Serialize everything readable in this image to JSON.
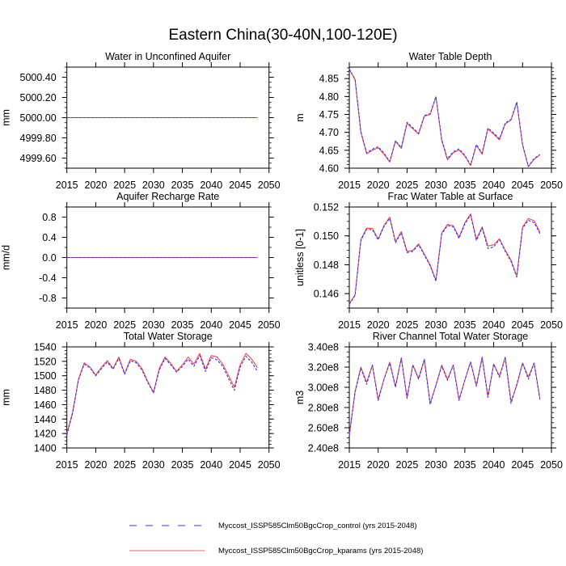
{
  "figure": {
    "title": "Eastern China(30-40N,100-120E)"
  },
  "legend": {
    "placement": "bottom-center",
    "entries": [
      {
        "label": "Myccost_ISSP585Clm50BgcCrop_control (yrs 2015-2048)",
        "color": "#3333ff",
        "style": "dashed"
      },
      {
        "label": "Myccost_ISSP585Clm50BgcCrop_kparams (yrs 2015-2048)",
        "color": "#ff3333",
        "style": "solid"
      }
    ]
  },
  "chart_data": [
    {
      "type": "line",
      "title": "Water in Unconfined Aquifer",
      "xlabel": "",
      "ylabel": "mm",
      "xlim": [
        2015,
        2050
      ],
      "ylim": [
        4999.5,
        5000.5
      ],
      "x_ticks": [
        2015,
        2020,
        2025,
        2030,
        2035,
        2040,
        2045,
        2050
      ],
      "x_minor": 5,
      "y_ticks": [
        4999.6,
        4999.8,
        5000.0,
        5000.2,
        5000.4
      ],
      "y_tick_labels": [
        "4999.60",
        "4999.80",
        "5000.00",
        "5000.20",
        "5000.40"
      ],
      "y_minor": 0.05,
      "grid": false,
      "x": [
        2015,
        2016,
        2017,
        2018,
        2019,
        2020,
        2021,
        2022,
        2023,
        2024,
        2025,
        2026,
        2027,
        2028,
        2029,
        2030,
        2031,
        2032,
        2033,
        2034,
        2035,
        2036,
        2037,
        2038,
        2039,
        2040,
        2041,
        2042,
        2043,
        2044,
        2045,
        2046,
        2047,
        2048
      ],
      "series": [
        {
          "name": "control",
          "values": [
            5000,
            5000,
            5000,
            5000,
            5000,
            5000,
            5000,
            5000,
            5000,
            5000,
            5000,
            5000,
            5000,
            5000,
            5000,
            5000,
            5000,
            5000,
            5000,
            5000,
            5000,
            5000,
            5000,
            5000,
            5000,
            5000,
            5000,
            5000,
            5000,
            5000,
            5000,
            5000,
            5000,
            5000
          ]
        },
        {
          "name": "kparams",
          "values": [
            5000,
            5000,
            5000,
            5000,
            5000,
            5000,
            5000,
            5000,
            5000,
            5000,
            5000,
            5000,
            5000,
            5000,
            5000,
            5000,
            5000,
            5000,
            5000,
            5000,
            5000,
            5000,
            5000,
            5000,
            5000,
            5000,
            5000,
            5000,
            5000,
            5000,
            5000,
            5000,
            5000,
            5000
          ]
        }
      ]
    },
    {
      "type": "line",
      "title": "Water Table Depth",
      "xlabel": "",
      "ylabel": "m",
      "xlim": [
        2015,
        2050
      ],
      "ylim": [
        4.6,
        4.882
      ],
      "x_ticks": [
        2015,
        2020,
        2025,
        2030,
        2035,
        2040,
        2045,
        2050
      ],
      "x_minor": 5,
      "y_ticks": [
        4.6,
        4.65,
        4.7,
        4.75,
        4.8,
        4.85
      ],
      "y_tick_labels": [
        "4.60",
        "4.65",
        "4.70",
        "4.75",
        "4.80",
        "4.85"
      ],
      "y_minor": 0.01,
      "grid": false,
      "x": [
        2015,
        2016,
        2017,
        2018,
        2019,
        2020,
        2021,
        2022,
        2023,
        2024,
        2025,
        2026,
        2027,
        2028,
        2029,
        2030,
        2031,
        2032,
        2033,
        2034,
        2035,
        2036,
        2037,
        2038,
        2039,
        2040,
        2041,
        2042,
        2043,
        2044,
        2045,
        2046,
        2047,
        2048
      ],
      "series": [
        {
          "name": "control",
          "values": [
            4.877,
            4.848,
            4.702,
            4.643,
            4.653,
            4.66,
            4.642,
            4.619,
            4.677,
            4.657,
            4.728,
            4.713,
            4.697,
            4.747,
            4.752,
            4.8,
            4.68,
            4.626,
            4.646,
            4.654,
            4.636,
            4.609,
            4.666,
            4.642,
            4.712,
            4.698,
            4.682,
            4.726,
            4.736,
            4.785,
            4.666,
            4.605,
            4.627,
            4.638
          ]
        },
        {
          "name": "kparams",
          "values": [
            4.876,
            4.847,
            4.7,
            4.64,
            4.65,
            4.657,
            4.639,
            4.617,
            4.675,
            4.655,
            4.725,
            4.71,
            4.695,
            4.745,
            4.75,
            4.799,
            4.678,
            4.623,
            4.643,
            4.651,
            4.634,
            4.607,
            4.664,
            4.639,
            4.709,
            4.695,
            4.679,
            4.724,
            4.734,
            4.783,
            4.664,
            4.604,
            4.625,
            4.637
          ]
        }
      ]
    },
    {
      "type": "line",
      "title": "Aquifer Recharge Rate",
      "xlabel": "",
      "ylabel": "mm/d",
      "xlim": [
        2015,
        2050
      ],
      "ylim": [
        -1.0,
        1.0
      ],
      "x_ticks": [
        2015,
        2020,
        2025,
        2030,
        2035,
        2040,
        2045,
        2050
      ],
      "x_minor": 5,
      "y_ticks": [
        -0.8,
        -0.4,
        0.0,
        0.4,
        0.8
      ],
      "y_tick_labels": [
        "-0.8",
        "-0.4",
        "0.0",
        "0.4",
        "0.8"
      ],
      "y_minor": 0.2,
      "grid": false,
      "x": [
        2015,
        2016,
        2017,
        2018,
        2019,
        2020,
        2021,
        2022,
        2023,
        2024,
        2025,
        2026,
        2027,
        2028,
        2029,
        2030,
        2031,
        2032,
        2033,
        2034,
        2035,
        2036,
        2037,
        2038,
        2039,
        2040,
        2041,
        2042,
        2043,
        2044,
        2045,
        2046,
        2047,
        2048
      ],
      "series": [
        {
          "name": "control",
          "values": [
            0,
            0,
            0,
            0,
            0,
            0,
            0,
            0,
            0,
            0,
            0,
            0,
            0,
            0,
            0,
            0,
            0,
            0,
            0,
            0,
            0,
            0,
            0,
            0,
            0,
            0,
            0,
            0,
            0,
            0,
            0,
            0,
            0,
            0
          ]
        },
        {
          "name": "kparams",
          "values": [
            0,
            0,
            0,
            0,
            0,
            0,
            0,
            0,
            0,
            0,
            0,
            0,
            0,
            0,
            0,
            0,
            0,
            0,
            0,
            0,
            0,
            0,
            0,
            0,
            0,
            0,
            0,
            0,
            0,
            0,
            0,
            0,
            0,
            0
          ]
        }
      ]
    },
    {
      "type": "line",
      "title": "Frac Water Table at Surface",
      "xlabel": "",
      "ylabel": "unitless [0-1]",
      "xlim": [
        2015,
        2050
      ],
      "ylim": [
        0.145,
        0.152
      ],
      "x_ticks": [
        2015,
        2020,
        2025,
        2030,
        2035,
        2040,
        2045,
        2050
      ],
      "x_minor": 5,
      "y_ticks": [
        0.146,
        0.148,
        0.15,
        0.152
      ],
      "y_tick_labels": [
        "0.146",
        "0.148",
        "0.150",
        "0.152"
      ],
      "y_minor": 0.0005,
      "grid": false,
      "x": [
        2015,
        2016,
        2017,
        2018,
        2019,
        2020,
        2021,
        2022,
        2023,
        2024,
        2025,
        2026,
        2027,
        2028,
        2029,
        2030,
        2031,
        2032,
        2033,
        2034,
        2035,
        2036,
        2037,
        2038,
        2039,
        2040,
        2041,
        2042,
        2043,
        2044,
        2045,
        2046,
        2047,
        2048
      ],
      "series": [
        {
          "name": "control",
          "values": [
            0.14525,
            0.14588,
            0.14968,
            0.15045,
            0.15043,
            0.14972,
            0.15065,
            0.15122,
            0.14953,
            0.15022,
            0.14884,
            0.14893,
            0.14938,
            0.14866,
            0.14793,
            0.14686,
            0.15012,
            0.15072,
            0.15063,
            0.14982,
            0.15082,
            0.15145,
            0.14968,
            0.15055,
            0.14913,
            0.14923,
            0.14974,
            0.14893,
            0.14823,
            0.14714,
            0.15053,
            0.15108,
            0.15092,
            0.15016
          ]
        },
        {
          "name": "kparams",
          "values": [
            0.1453,
            0.14592,
            0.14975,
            0.15053,
            0.15052,
            0.14978,
            0.15072,
            0.1513,
            0.1496,
            0.1503,
            0.14892,
            0.149,
            0.14945,
            0.14873,
            0.148,
            0.14692,
            0.1502,
            0.1508,
            0.1507,
            0.1499,
            0.1509,
            0.15152,
            0.14976,
            0.15062,
            0.1493,
            0.14938,
            0.1498,
            0.149,
            0.14832,
            0.14722,
            0.15062,
            0.1512,
            0.15105,
            0.15025
          ]
        }
      ]
    },
    {
      "type": "line",
      "title": "Total Water Storage",
      "xlabel": "",
      "ylabel": "mm",
      "xlim": [
        2015,
        2050
      ],
      "ylim": [
        1400,
        1540
      ],
      "x_ticks": [
        2015,
        2020,
        2025,
        2030,
        2035,
        2040,
        2045,
        2050
      ],
      "x_minor": 5,
      "y_ticks": [
        1400,
        1420,
        1440,
        1460,
        1480,
        1500,
        1520,
        1540
      ],
      "y_tick_labels": [
        "1400",
        "1420",
        "1440",
        "1460",
        "1480",
        "1500",
        "1520",
        "1540"
      ],
      "y_minor": 5,
      "grid": false,
      "x": [
        2015,
        2016,
        2017,
        2018,
        2019,
        2020,
        2021,
        2022,
        2023,
        2024,
        2025,
        2026,
        2027,
        2028,
        2029,
        2030,
        2031,
        2032,
        2033,
        2034,
        2035,
        2036,
        2037,
        2038,
        2039,
        2040,
        2041,
        2042,
        2043,
        2044,
        2045,
        2046,
        2047,
        2048
      ],
      "series": [
        {
          "name": "control",
          "values": [
            1418,
            1448,
            1494,
            1516,
            1511,
            1500,
            1510,
            1519,
            1509,
            1524,
            1502,
            1521,
            1518,
            1508,
            1491,
            1476,
            1508,
            1524,
            1515,
            1505,
            1513,
            1523,
            1513,
            1528,
            1506,
            1525,
            1522,
            1513,
            1496,
            1480,
            1512,
            1527,
            1519,
            1506
          ]
        },
        {
          "name": "kparams",
          "values": [
            1420,
            1450,
            1495,
            1518,
            1512,
            1501,
            1512,
            1521,
            1510,
            1526,
            1503,
            1523,
            1520,
            1510,
            1492,
            1477,
            1510,
            1526,
            1517,
            1506,
            1515,
            1526,
            1516,
            1531,
            1509,
            1528,
            1526,
            1516,
            1500,
            1484,
            1515,
            1531,
            1523,
            1511
          ]
        }
      ]
    },
    {
      "type": "line",
      "title": "River Channel Total Water Storage",
      "xlabel": "",
      "ylabel": "m3",
      "xlim": [
        2015,
        2050
      ],
      "ylim": [
        240000000.0,
        340000000.0
      ],
      "x_ticks": [
        2015,
        2020,
        2025,
        2030,
        2035,
        2040,
        2045,
        2050
      ],
      "x_minor": 5,
      "y_ticks": [
        240000000.0,
        260000000.0,
        280000000.0,
        300000000.0,
        320000000.0,
        340000000.0
      ],
      "y_tick_labels": [
        "2.40e8",
        "2.60e8",
        "2.80e8",
        "3.00e8",
        "3.20e8",
        "3.40e8"
      ],
      "y_minor": 5000000.0,
      "grid": false,
      "x": [
        2015,
        2016,
        2017,
        2018,
        2019,
        2020,
        2021,
        2022,
        2023,
        2024,
        2025,
        2026,
        2027,
        2028,
        2029,
        2030,
        2031,
        2032,
        2033,
        2034,
        2035,
        2036,
        2037,
        2038,
        2039,
        2040,
        2041,
        2042,
        2043,
        2044,
        2045,
        2046,
        2047,
        2048
      ],
      "series": [
        {
          "name": "control",
          "values": [
            252000000.0,
            295000000.0,
            319000000.0,
            303000000.0,
            322000000.0,
            287000000.0,
            308000000.0,
            324000000.0,
            300000000.0,
            329000000.0,
            289000000.0,
            322000000.0,
            308000000.0,
            327000000.0,
            283000000.0,
            302000000.0,
            321000000.0,
            307000000.0,
            322000000.0,
            287000000.0,
            307000000.0,
            325000000.0,
            301000000.0,
            329000000.0,
            290000000.0,
            323000000.0,
            310000000.0,
            329000000.0,
            284000000.0,
            303000000.0,
            324000000.0,
            308000000.0,
            324000000.0,
            288000000.0
          ]
        },
        {
          "name": "kparams",
          "values": [
            253000000.0,
            296000000.0,
            320000000.0,
            305000000.0,
            322000000.0,
            288000000.0,
            308000000.0,
            325000000.0,
            301000000.0,
            329000000.0,
            290000000.0,
            322000000.0,
            309000000.0,
            328000000.0,
            284000000.0,
            302000000.0,
            322000000.0,
            308000000.0,
            322000000.0,
            288000000.0,
            307000000.0,
            325000000.0,
            302000000.0,
            330000000.0,
            291000000.0,
            323000000.0,
            311000000.0,
            330000000.0,
            286000000.0,
            302000000.0,
            324000000.0,
            310000000.0,
            324000000.0,
            289000000.0
          ]
        }
      ]
    }
  ]
}
